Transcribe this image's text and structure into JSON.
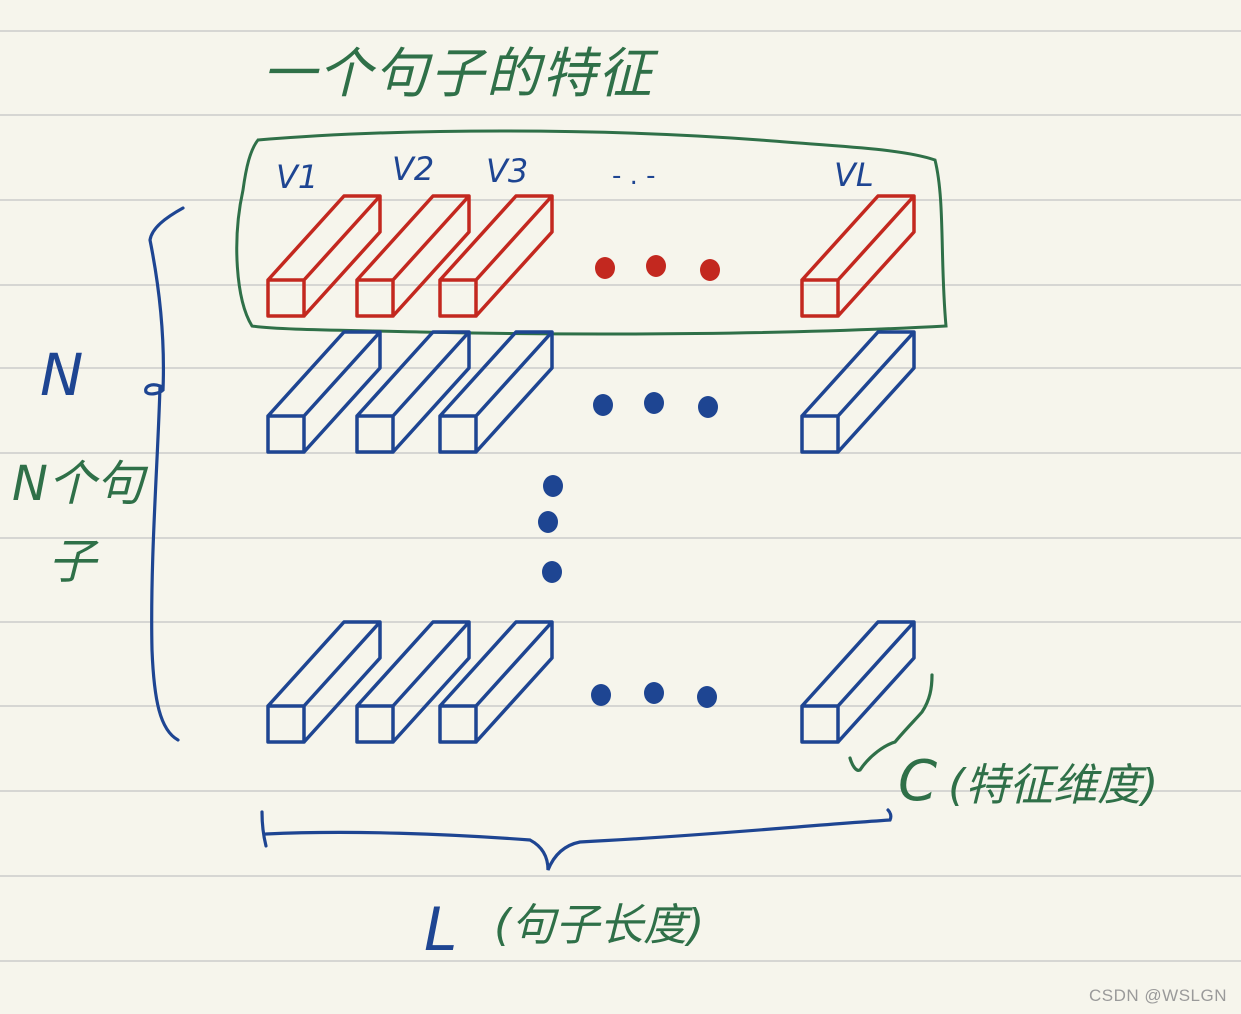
{
  "colors": {
    "paper": "#f6f5ec",
    "ruled_line": "#d6d6d3",
    "red": "#c3281f",
    "blue": "#1e4592",
    "green": "#2f7048"
  },
  "labels": {
    "title": "一个句子的特征",
    "v1": "V1",
    "v2": "V2",
    "v3": "V3",
    "v_dots": "- . -",
    "vl": "VL",
    "n_symbol": "N",
    "n_sentences_line1": "N个句",
    "n_sentences_line2": "子",
    "c_label": "C",
    "c_annotation": "(特征维度)",
    "l_label": "L",
    "l_annotation": "(句子长度)"
  },
  "watermark": "CSDN @WSLGN"
}
